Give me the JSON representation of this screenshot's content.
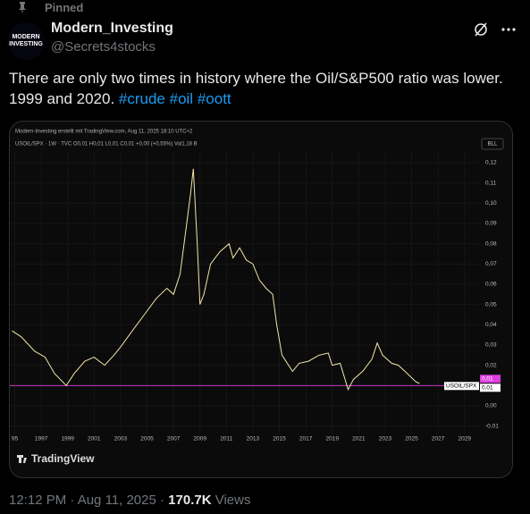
{
  "tweet": {
    "pinned": "Pinned",
    "avatar_text": [
      "MODERN",
      "INVESTING"
    ],
    "name": "Modern_Investing",
    "handle": "@Secrets4stocks",
    "text_lines": [
      "There are only two times in history where the Oil/S&P500 ratio was lower.",
      "1999 and 2020."
    ],
    "hashtags": [
      "#crude",
      "#oil",
      "#oott"
    ],
    "card_footer": "TradingView",
    "time": "12:12 PM · Aug 11, 2025 · ",
    "views_count": "170.7K",
    "views_label": " Views"
  },
  "chart_data": {
    "type": "line",
    "credit": "Modern-Investing erstellt mit TradingView.com, Aug 11, 2025 18:10 UTC+2",
    "symbol_info": "USOIL/SPX · 1W · TVC  O0,01  H0,01  L0,01  C0,01  +0,00 (+0,55%)  Vol1,18 B",
    "currency_button": "BLL",
    "x": [
      1994.8,
      1995.5,
      1996.5,
      1997.3,
      1998,
      1998.9,
      1999.5,
      2000.3,
      2001,
      2001.8,
      2002.5,
      2003,
      2004,
      2004.8,
      2005.7,
      2006.5,
      2007,
      2007.5,
      2008,
      2008.3,
      2008.5,
      2008.8,
      2009,
      2009.3,
      2009.8,
      2010.5,
      2011.2,
      2011.5,
      2012,
      2012.5,
      2013,
      2013.5,
      2014,
      2014.5,
      2014.8,
      2015.2,
      2016,
      2016.5,
      2017.2,
      2018,
      2018.7,
      2019,
      2019.6,
      2020.2,
      2020.6,
      2021.3,
      2022,
      2022.4,
      2022.8,
      2023.5,
      2024,
      2024.5,
      2025.3,
      2025.6
    ],
    "series": [
      {
        "name": "USOIL/SPX",
        "color": "#f3e6a8",
        "values": [
          0.037,
          0.034,
          0.027,
          0.024,
          0.016,
          0.01,
          0.016,
          0.022,
          0.024,
          0.02,
          0.025,
          0.029,
          0.038,
          0.045,
          0.053,
          0.058,
          0.055,
          0.065,
          0.09,
          0.105,
          0.117,
          0.08,
          0.05,
          0.055,
          0.07,
          0.076,
          0.08,
          0.073,
          0.078,
          0.072,
          0.07,
          0.062,
          0.058,
          0.055,
          0.04,
          0.025,
          0.017,
          0.021,
          0.022,
          0.025,
          0.026,
          0.02,
          0.021,
          0.008,
          0.013,
          0.017,
          0.023,
          0.031,
          0.025,
          0.021,
          0.02,
          0.017,
          0.012,
          0.011
        ]
      }
    ],
    "reference_line": {
      "value": 0.01,
      "color": "#e040e0",
      "labels": [
        "0,01",
        "USOIL/SPX",
        "0,01"
      ]
    },
    "xlim": [
      1994.63,
      2030.03
    ],
    "xticks": [
      {
        "value": 1995,
        "label": "95"
      },
      1997,
      1999,
      2001,
      2003,
      2005,
      2007,
      2009,
      2011,
      2013,
      2015,
      2017,
      2019,
      2021,
      2023,
      2025,
      2027,
      2029
    ],
    "ylim": [
      -0.0137,
      0.1253
    ],
    "yticks": [
      {
        "value": 0.12,
        "label": "0,12"
      },
      {
        "value": 0.11,
        "label": "0,11"
      },
      {
        "value": 0.1,
        "label": "0,10"
      },
      {
        "value": 0.09,
        "label": "0,09"
      },
      {
        "value": 0.08,
        "label": "0,08"
      },
      {
        "value": 0.07,
        "label": "0,07"
      },
      {
        "value": 0.06,
        "label": "0,06"
      },
      {
        "value": 0.05,
        "label": "0,05"
      },
      {
        "value": 0.04,
        "label": "0,04"
      },
      {
        "value": 0.03,
        "label": "0,03"
      },
      {
        "value": 0.02,
        "label": "0,02"
      },
      {
        "value": 0,
        "label": "0,00"
      },
      {
        "value": -0.01,
        "label": "-0,01"
      }
    ],
    "grid": true
  }
}
